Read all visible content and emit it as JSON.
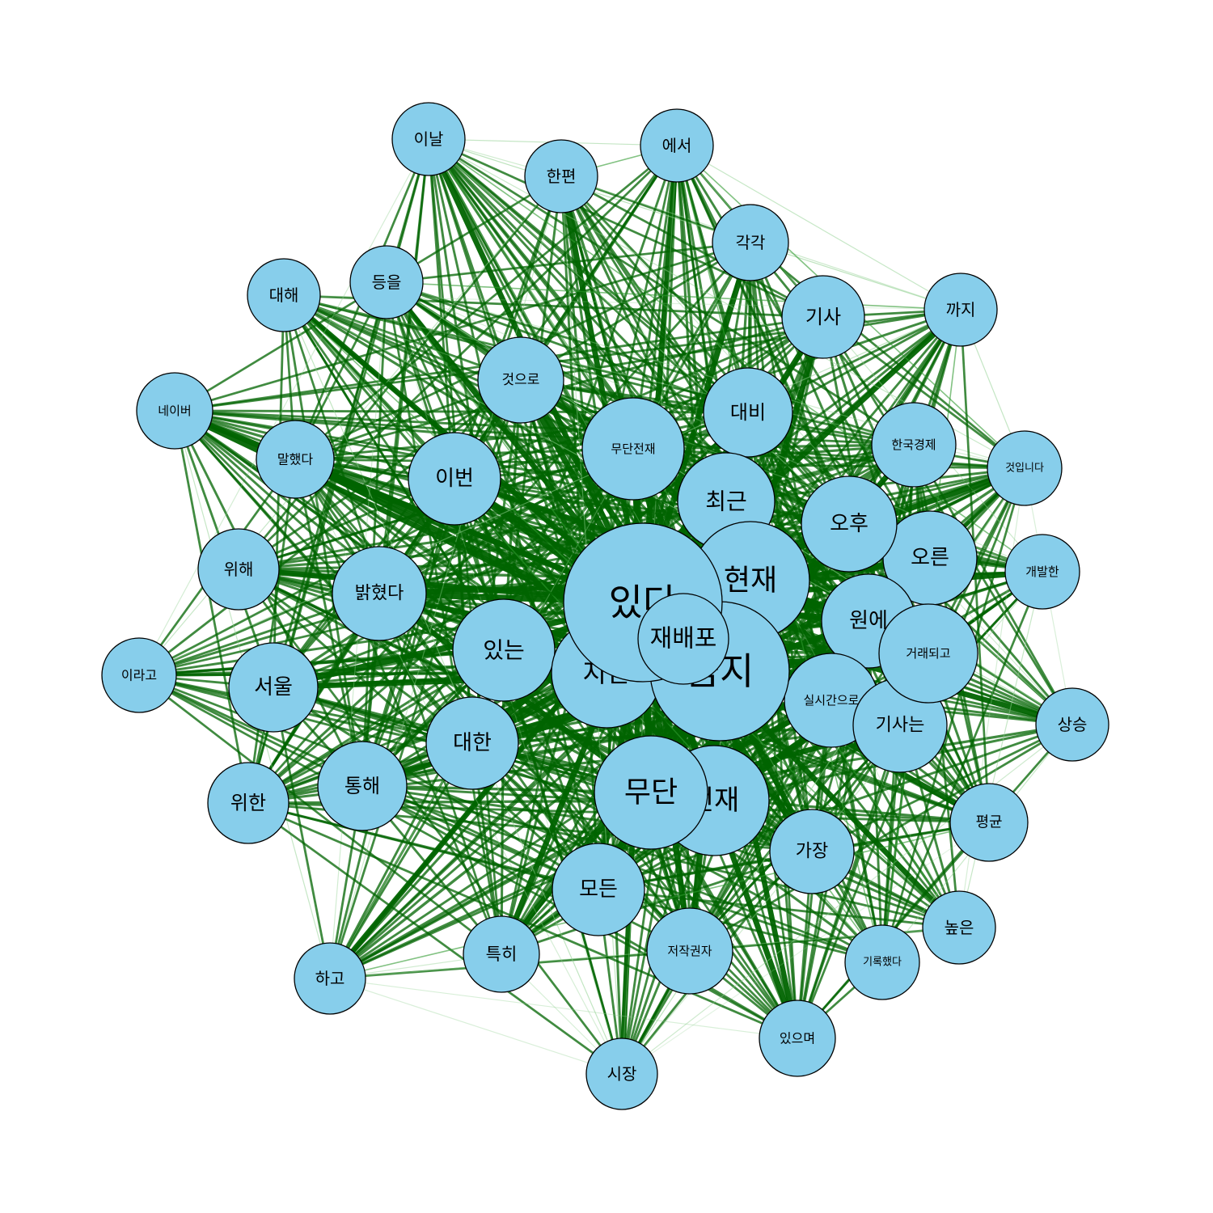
{
  "colors": {
    "node_fill": "#87ceeb",
    "node_stroke": "#000000",
    "edge_strong": "#006400",
    "edge_medium": "#2e9a2e",
    "edge_light": "#8fd08f",
    "background": "#ffffff"
  },
  "nodes": [
    {
      "id": "isseoda",
      "label": "있다"
    },
    {
      "id": "geumji",
      "label": "금지"
    },
    {
      "id": "jaebaepo",
      "label": "재배포"
    },
    {
      "id": "hyeonjae",
      "label": "현재"
    },
    {
      "id": "jinan",
      "label": "지난"
    },
    {
      "id": "mudan",
      "label": "무단"
    },
    {
      "id": "jeonjae",
      "label": "전재"
    },
    {
      "id": "itneun",
      "label": "있는"
    },
    {
      "id": "mudanjeonjae",
      "label": "무단전재"
    },
    {
      "id": "choegeun",
      "label": "최근"
    },
    {
      "id": "ohu",
      "label": "오후"
    },
    {
      "id": "oreun",
      "label": "오른"
    },
    {
      "id": "wone",
      "label": "원에"
    },
    {
      "id": "georaedoego",
      "label": "거래되고"
    },
    {
      "id": "silsigan",
      "label": "실시간으로"
    },
    {
      "id": "gisaneun",
      "label": "기사는"
    },
    {
      "id": "daehan",
      "label": "대한"
    },
    {
      "id": "seoul",
      "label": "서울"
    },
    {
      "id": "tonghae",
      "label": "통해"
    },
    {
      "id": "balkyeotda",
      "label": "밝혔다"
    },
    {
      "id": "ibeon",
      "label": "이번"
    },
    {
      "id": "geoseuro",
      "label": "것으로"
    },
    {
      "id": "daebi",
      "label": "대비"
    },
    {
      "id": "modeun",
      "label": "모든"
    },
    {
      "id": "gajang",
      "label": "가장"
    },
    {
      "id": "jeojakgwonja",
      "label": "저작권자"
    },
    {
      "id": "teukhi",
      "label": "특히"
    },
    {
      "id": "gisa",
      "label": "기사"
    },
    {
      "id": "hangukgyeongje",
      "label": "한국경제"
    },
    {
      "id": "gakgak",
      "label": "각각"
    },
    {
      "id": "hanpyeon",
      "label": "한편"
    },
    {
      "id": "inal",
      "label": "이날"
    },
    {
      "id": "eseo",
      "label": "에서"
    },
    {
      "id": "deungeul",
      "label": "등을"
    },
    {
      "id": "daehae",
      "label": "대해"
    },
    {
      "id": "naver",
      "label": "네이버"
    },
    {
      "id": "malhaetda",
      "label": "말했다"
    },
    {
      "id": "wihae",
      "label": "위해"
    },
    {
      "id": "irago",
      "label": "이라고"
    },
    {
      "id": "wihan",
      "label": "위한"
    },
    {
      "id": "hago",
      "label": "하고"
    },
    {
      "id": "sijang",
      "label": "시장"
    },
    {
      "id": "isseumyeo",
      "label": "있으며"
    },
    {
      "id": "girokhaetda",
      "label": "기록했다"
    },
    {
      "id": "nopeun",
      "label": "높은"
    },
    {
      "id": "pyeonggyun",
      "label": "평균"
    },
    {
      "id": "sangseung",
      "label": "상승"
    },
    {
      "id": "gaebalhan",
      "label": "개발한"
    },
    {
      "id": "geosimnida",
      "label": "것입니다"
    },
    {
      "id": "kkaji",
      "label": "까지"
    }
  ]
}
